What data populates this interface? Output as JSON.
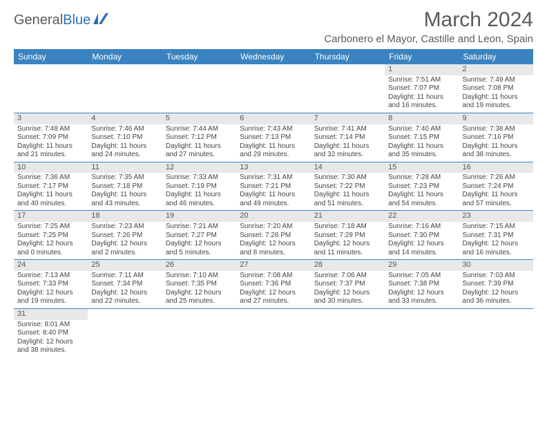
{
  "brand": {
    "part1": "General",
    "part2": "Blue"
  },
  "title": "March 2024",
  "location": "Carbonero el Mayor, Castille and Leon, Spain",
  "header_bg": "#3b83c0",
  "dow": [
    "Sunday",
    "Monday",
    "Tuesday",
    "Wednesday",
    "Thursday",
    "Friday",
    "Saturday"
  ],
  "weeks": [
    [
      {
        "n": "",
        "sr": "",
        "ss": "",
        "d1": "",
        "d2": ""
      },
      {
        "n": "",
        "sr": "",
        "ss": "",
        "d1": "",
        "d2": ""
      },
      {
        "n": "",
        "sr": "",
        "ss": "",
        "d1": "",
        "d2": ""
      },
      {
        "n": "",
        "sr": "",
        "ss": "",
        "d1": "",
        "d2": ""
      },
      {
        "n": "",
        "sr": "",
        "ss": "",
        "d1": "",
        "d2": ""
      },
      {
        "n": "1",
        "sr": "Sunrise: 7:51 AM",
        "ss": "Sunset: 7:07 PM",
        "d1": "Daylight: 11 hours",
        "d2": "and 16 minutes."
      },
      {
        "n": "2",
        "sr": "Sunrise: 7:49 AM",
        "ss": "Sunset: 7:08 PM",
        "d1": "Daylight: 11 hours",
        "d2": "and 19 minutes."
      }
    ],
    [
      {
        "n": "3",
        "sr": "Sunrise: 7:48 AM",
        "ss": "Sunset: 7:09 PM",
        "d1": "Daylight: 11 hours",
        "d2": "and 21 minutes."
      },
      {
        "n": "4",
        "sr": "Sunrise: 7:46 AM",
        "ss": "Sunset: 7:10 PM",
        "d1": "Daylight: 11 hours",
        "d2": "and 24 minutes."
      },
      {
        "n": "5",
        "sr": "Sunrise: 7:44 AM",
        "ss": "Sunset: 7:12 PM",
        "d1": "Daylight: 11 hours",
        "d2": "and 27 minutes."
      },
      {
        "n": "6",
        "sr": "Sunrise: 7:43 AM",
        "ss": "Sunset: 7:13 PM",
        "d1": "Daylight: 11 hours",
        "d2": "and 29 minutes."
      },
      {
        "n": "7",
        "sr": "Sunrise: 7:41 AM",
        "ss": "Sunset: 7:14 PM",
        "d1": "Daylight: 11 hours",
        "d2": "and 32 minutes."
      },
      {
        "n": "8",
        "sr": "Sunrise: 7:40 AM",
        "ss": "Sunset: 7:15 PM",
        "d1": "Daylight: 11 hours",
        "d2": "and 35 minutes."
      },
      {
        "n": "9",
        "sr": "Sunrise: 7:38 AM",
        "ss": "Sunset: 7:16 PM",
        "d1": "Daylight: 11 hours",
        "d2": "and 38 minutes."
      }
    ],
    [
      {
        "n": "10",
        "sr": "Sunrise: 7:36 AM",
        "ss": "Sunset: 7:17 PM",
        "d1": "Daylight: 11 hours",
        "d2": "and 40 minutes."
      },
      {
        "n": "11",
        "sr": "Sunrise: 7:35 AM",
        "ss": "Sunset: 7:18 PM",
        "d1": "Daylight: 11 hours",
        "d2": "and 43 minutes."
      },
      {
        "n": "12",
        "sr": "Sunrise: 7:33 AM",
        "ss": "Sunset: 7:19 PM",
        "d1": "Daylight: 11 hours",
        "d2": "and 46 minutes."
      },
      {
        "n": "13",
        "sr": "Sunrise: 7:31 AM",
        "ss": "Sunset: 7:21 PM",
        "d1": "Daylight: 11 hours",
        "d2": "and 49 minutes."
      },
      {
        "n": "14",
        "sr": "Sunrise: 7:30 AM",
        "ss": "Sunset: 7:22 PM",
        "d1": "Daylight: 11 hours",
        "d2": "and 51 minutes."
      },
      {
        "n": "15",
        "sr": "Sunrise: 7:28 AM",
        "ss": "Sunset: 7:23 PM",
        "d1": "Daylight: 11 hours",
        "d2": "and 54 minutes."
      },
      {
        "n": "16",
        "sr": "Sunrise: 7:26 AM",
        "ss": "Sunset: 7:24 PM",
        "d1": "Daylight: 11 hours",
        "d2": "and 57 minutes."
      }
    ],
    [
      {
        "n": "17",
        "sr": "Sunrise: 7:25 AM",
        "ss": "Sunset: 7:25 PM",
        "d1": "Daylight: 12 hours",
        "d2": "and 0 minutes."
      },
      {
        "n": "18",
        "sr": "Sunrise: 7:23 AM",
        "ss": "Sunset: 7:26 PM",
        "d1": "Daylight: 12 hours",
        "d2": "and 2 minutes."
      },
      {
        "n": "19",
        "sr": "Sunrise: 7:21 AM",
        "ss": "Sunset: 7:27 PM",
        "d1": "Daylight: 12 hours",
        "d2": "and 5 minutes."
      },
      {
        "n": "20",
        "sr": "Sunrise: 7:20 AM",
        "ss": "Sunset: 7:28 PM",
        "d1": "Daylight: 12 hours",
        "d2": "and 8 minutes."
      },
      {
        "n": "21",
        "sr": "Sunrise: 7:18 AM",
        "ss": "Sunset: 7:29 PM",
        "d1": "Daylight: 12 hours",
        "d2": "and 11 minutes."
      },
      {
        "n": "22",
        "sr": "Sunrise: 7:16 AM",
        "ss": "Sunset: 7:30 PM",
        "d1": "Daylight: 12 hours",
        "d2": "and 14 minutes."
      },
      {
        "n": "23",
        "sr": "Sunrise: 7:15 AM",
        "ss": "Sunset: 7:31 PM",
        "d1": "Daylight: 12 hours",
        "d2": "and 16 minutes."
      }
    ],
    [
      {
        "n": "24",
        "sr": "Sunrise: 7:13 AM",
        "ss": "Sunset: 7:33 PM",
        "d1": "Daylight: 12 hours",
        "d2": "and 19 minutes."
      },
      {
        "n": "25",
        "sr": "Sunrise: 7:11 AM",
        "ss": "Sunset: 7:34 PM",
        "d1": "Daylight: 12 hours",
        "d2": "and 22 minutes."
      },
      {
        "n": "26",
        "sr": "Sunrise: 7:10 AM",
        "ss": "Sunset: 7:35 PM",
        "d1": "Daylight: 12 hours",
        "d2": "and 25 minutes."
      },
      {
        "n": "27",
        "sr": "Sunrise: 7:08 AM",
        "ss": "Sunset: 7:36 PM",
        "d1": "Daylight: 12 hours",
        "d2": "and 27 minutes."
      },
      {
        "n": "28",
        "sr": "Sunrise: 7:06 AM",
        "ss": "Sunset: 7:37 PM",
        "d1": "Daylight: 12 hours",
        "d2": "and 30 minutes."
      },
      {
        "n": "29",
        "sr": "Sunrise: 7:05 AM",
        "ss": "Sunset: 7:38 PM",
        "d1": "Daylight: 12 hours",
        "d2": "and 33 minutes."
      },
      {
        "n": "30",
        "sr": "Sunrise: 7:03 AM",
        "ss": "Sunset: 7:39 PM",
        "d1": "Daylight: 12 hours",
        "d2": "and 36 minutes."
      }
    ],
    [
      {
        "n": "31",
        "sr": "Sunrise: 8:01 AM",
        "ss": "Sunset: 8:40 PM",
        "d1": "Daylight: 12 hours",
        "d2": "and 38 minutes."
      },
      {
        "n": "",
        "sr": "",
        "ss": "",
        "d1": "",
        "d2": ""
      },
      {
        "n": "",
        "sr": "",
        "ss": "",
        "d1": "",
        "d2": ""
      },
      {
        "n": "",
        "sr": "",
        "ss": "",
        "d1": "",
        "d2": ""
      },
      {
        "n": "",
        "sr": "",
        "ss": "",
        "d1": "",
        "d2": ""
      },
      {
        "n": "",
        "sr": "",
        "ss": "",
        "d1": "",
        "d2": ""
      },
      {
        "n": "",
        "sr": "",
        "ss": "",
        "d1": "",
        "d2": ""
      }
    ]
  ]
}
